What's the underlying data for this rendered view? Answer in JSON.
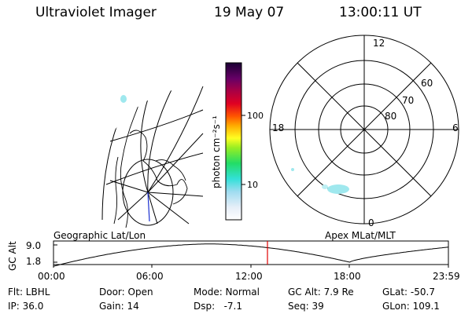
{
  "header": {
    "instrument": "Ultraviolet Imager",
    "date": "19 May 07",
    "time": "13:00:11 UT"
  },
  "colorbar": {
    "unit_label": "photon cm⁻²s⁻¹",
    "ticks": [
      "100",
      "10"
    ]
  },
  "polar_plot": {
    "mlt_labels": [
      "12",
      "18",
      "6",
      "0"
    ],
    "lat_labels": [
      "60",
      "70",
      "80"
    ]
  },
  "map_labels": {
    "left": "Geographic Lat/Lon",
    "right": "Apex MLat/MLT"
  },
  "orbit_plot": {
    "ylabel": "GC Alt",
    "y_ticks": [
      "9.0",
      "1.8"
    ],
    "x_ticks": [
      "00:00",
      "06:00",
      "12:00",
      "18:00",
      "23:59"
    ],
    "marker_time": "13:00:11"
  },
  "params": {
    "flt": "Flt: LBHL",
    "ip": "IP: 36.0",
    "door": "Door: Open",
    "gain": "Gain: 14",
    "mode": "Mode: Normal",
    "dsp": "Dsp:   -7.1",
    "gc_alt": "GC Alt: 7.9 Re",
    "seq": "Seq: 39",
    "glat": "GLat: -50.7",
    "glon": "GLon: 109.1"
  },
  "colors": {
    "marker": "#e00000",
    "aurora": "#9fe8ee"
  }
}
